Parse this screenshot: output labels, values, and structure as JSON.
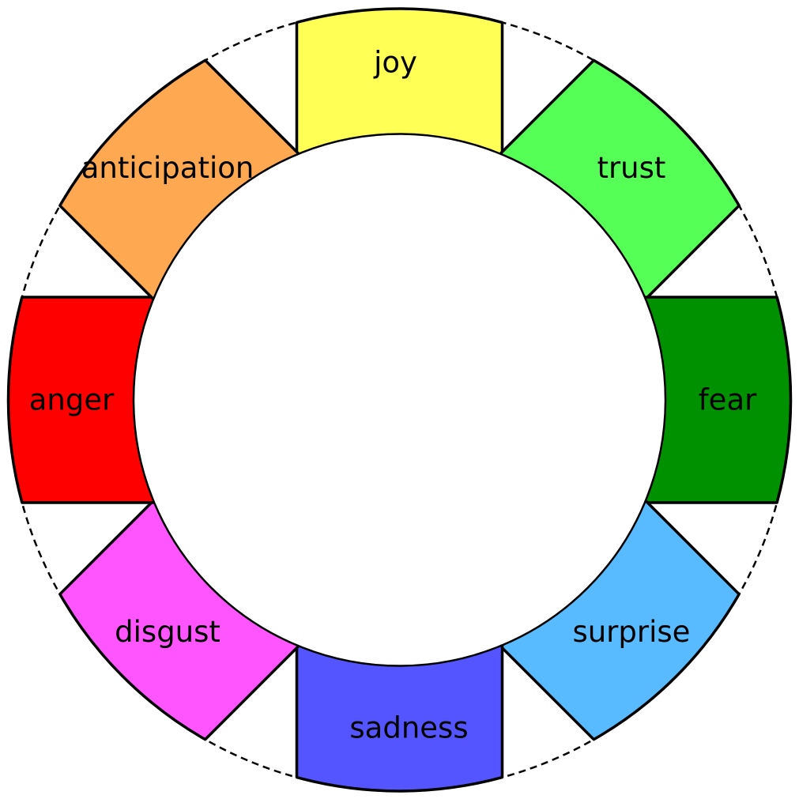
{
  "diagram": {
    "segments": [
      {
        "id": "joy",
        "label": "joy",
        "color": "#ffff55"
      },
      {
        "id": "trust",
        "label": "trust",
        "color": "#55ff55"
      },
      {
        "id": "fear",
        "label": "fear",
        "color": "#009100"
      },
      {
        "id": "surprise",
        "label": "surprise",
        "color": "#59bbff"
      },
      {
        "id": "sadness",
        "label": "sadness",
        "color": "#5555ff"
      },
      {
        "id": "disgust",
        "label": "disgust",
        "color": "#ff55ff"
      },
      {
        "id": "anger",
        "label": "anger",
        "color": "#ff0000"
      },
      {
        "id": "anticipation",
        "label": "anticipation",
        "color": "#ffa852"
      }
    ]
  }
}
